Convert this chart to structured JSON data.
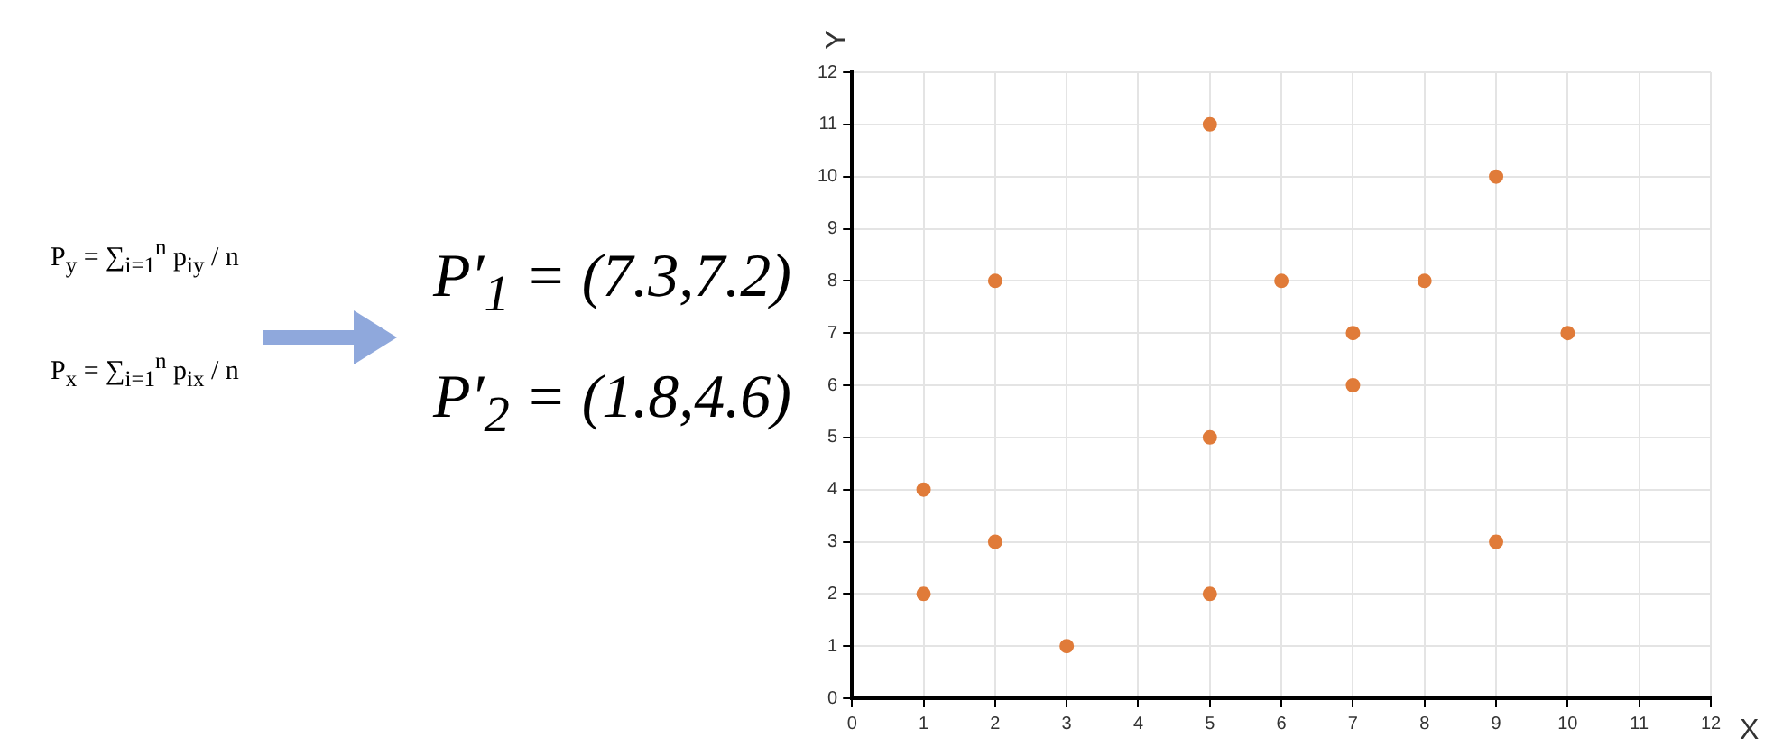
{
  "chart_data": {
    "type": "scatter",
    "xlabel": "X",
    "ylabel": "Y",
    "x": [
      1,
      1,
      2,
      2,
      3,
      5,
      5,
      5,
      6,
      7,
      7,
      8,
      9,
      9,
      10
    ],
    "values": [
      4,
      2,
      8,
      3,
      1,
      11,
      5,
      2,
      8,
      7,
      6,
      8,
      10,
      3,
      7
    ],
    "color": "#e07b39",
    "marker": "circle",
    "grid": true,
    "xlim": [
      0,
      12
    ],
    "xticks": [
      0,
      1,
      2,
      3,
      4,
      5,
      6,
      7,
      8,
      9,
      10,
      11,
      12
    ],
    "ylim": [
      0,
      12
    ],
    "yticks": [
      0,
      1,
      2,
      3,
      4,
      5,
      6,
      7,
      8,
      9,
      10,
      11,
      12
    ],
    "annotations": [
      "P$_{y}$ = ∑$_{i=1}$$^{n}$ p$_{iy}$ / n",
      "P$_{x}$ = ∑$_{i=1}$$^{n}$ p$_{ix}$ / n",
      "P′$_{1}$ = (7.3,7.2)",
      "P′$_{2}$ = (1.8,4.6)"
    ]
  }
}
